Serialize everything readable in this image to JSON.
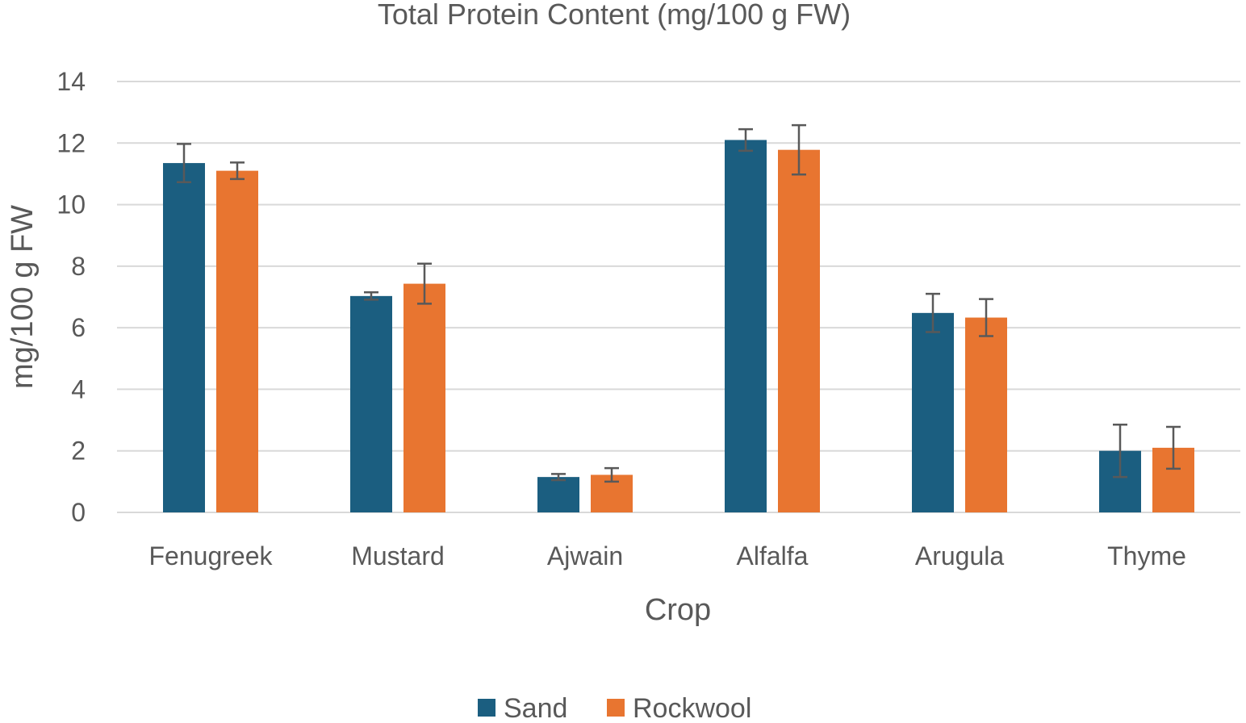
{
  "chart_data": {
    "type": "bar",
    "title": "Total Protein Content (mg/100 g FW)",
    "xlabel": "Crop",
    "ylabel": "mg/100 g FW",
    "ylim": [
      0,
      14
    ],
    "yticks": [
      0,
      2,
      4,
      6,
      8,
      10,
      12,
      14
    ],
    "grid": true,
    "legend_position": "bottom",
    "categories": [
      "Fenugreek",
      "Mustard",
      "Ajwain",
      "Alfalfa",
      "Arugula",
      "Thyme"
    ],
    "series": [
      {
        "name": "Sand",
        "color": "#1b5e80",
        "values": [
          11.35,
          7.03,
          1.15,
          12.1,
          6.48,
          2.0
        ],
        "errors": [
          0.62,
          0.12,
          0.1,
          0.35,
          0.62,
          0.85
        ]
      },
      {
        "name": "Rockwool",
        "color": "#e87530",
        "values": [
          11.1,
          7.43,
          1.22,
          11.78,
          6.33,
          2.1
        ],
        "errors": [
          0.27,
          0.65,
          0.22,
          0.8,
          0.6,
          0.68
        ]
      }
    ]
  }
}
